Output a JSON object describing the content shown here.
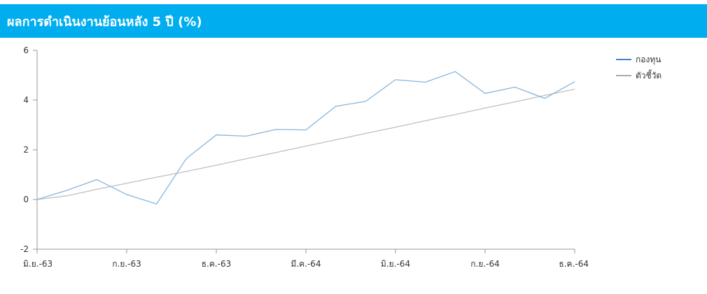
{
  "header": {
    "title": "ผลการดำเนินงานย้อนหลัง 5 ปี (%)"
  },
  "colors": {
    "header_bg": "#00aeef",
    "header_text": "#ffffff",
    "fund_line": "#86b5dc",
    "benchmark_line": "#bfbfbf",
    "axis": "#999999",
    "tick_text": "#333333",
    "legend_fund_swatch": "#3f86c9",
    "legend_benchmark_swatch": "#aaaaaa"
  },
  "chart_data": {
    "type": "line",
    "x_tick_labels": [
      "มิ.ย.-63",
      "ก.ย.-63",
      "ธ.ค.-63",
      "มี.ค.-64",
      "มิ.ย.-64",
      "ก.ย.-64",
      "ธ.ค.-64"
    ],
    "ylim": [
      -2,
      6
    ],
    "y_ticks": [
      -2,
      0,
      2,
      4,
      6
    ],
    "grid": false,
    "legend_position": "top-right",
    "series": [
      {
        "name": "กองทุน",
        "x": [
          0,
          1,
          2,
          3,
          4,
          5,
          6,
          7,
          8,
          9,
          10,
          11,
          12,
          13,
          14,
          15,
          16,
          17,
          18
        ],
        "values": [
          0.0,
          0.37,
          0.8,
          0.2,
          -0.18,
          1.65,
          2.6,
          2.55,
          2.82,
          2.8,
          3.75,
          3.95,
          4.82,
          4.72,
          5.15,
          4.27,
          4.52,
          4.07,
          4.74
        ]
      },
      {
        "name": "ตัวชี้วัด",
        "x": [
          0,
          1,
          2,
          3,
          4,
          5,
          6,
          7,
          8,
          9,
          10,
          11,
          12,
          13,
          14,
          15,
          16,
          17,
          18
        ],
        "values": [
          0.0,
          0.15,
          0.41,
          0.65,
          0.9,
          1.13,
          1.38,
          1.64,
          1.89,
          2.15,
          2.4,
          2.66,
          2.91,
          3.17,
          3.42,
          3.68,
          3.93,
          4.19,
          4.44
        ]
      }
    ]
  }
}
